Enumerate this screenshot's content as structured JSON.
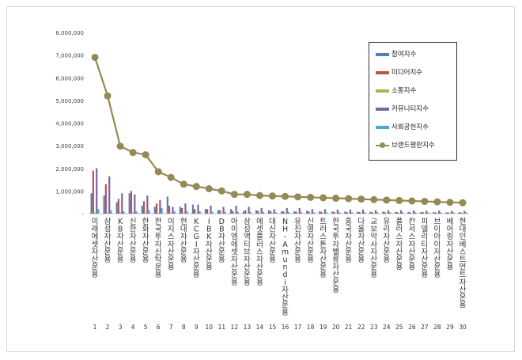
{
  "chart_data": {
    "type": "bar",
    "ylim": [
      0,
      8000000
    ],
    "yticks": [
      "8,000,000",
      "7,000,000",
      "6,000,000",
      "5,000,000",
      "4,000,000",
      "3,000,000",
      "2,000,000",
      "1,000,000",
      "-"
    ],
    "categories": [
      "미래에셋자산운용",
      "삼성자산운용",
      "KB자산운용",
      "신한자산운용",
      "한화자산운용",
      "한국투자신탁운용",
      "이지스자산운용",
      "현대자산운용",
      "KCGI자산운용",
      "IBK자산운용",
      "DB자산운용",
      "아이엠에셋자산운용",
      "삼성액티브자산운용",
      "에셋플러스자산운용",
      "대신자산운용",
      "NH-Amundi자산운용",
      "유진자산운용",
      "신영자산운용",
      "트러스톤자산운용",
      "한국투자밸류자산운용",
      "흥국자산운용",
      "다올자산운용",
      "교보악사자산운용",
      "유리자산운용",
      "플러스자산운용",
      "칸서스자산운용",
      "피델리티자산운용",
      "브이아이자산운용",
      "베어링자산운용",
      "현대인베스트먼트자산운용"
    ],
    "ranks": [
      "1",
      "2",
      "3",
      "4",
      "5",
      "6",
      "7",
      "8",
      "9",
      "10",
      "11",
      "12",
      "13",
      "14",
      "15",
      "16",
      "17",
      "18",
      "19",
      "20",
      "21",
      "22",
      "23",
      "24",
      "25",
      "26",
      "27",
      "28",
      "29",
      "30"
    ],
    "series": [
      {
        "name": "참여지수",
        "color": "#4f81bd",
        "values": [
          900000,
          800000,
          500000,
          900000,
          350000,
          300000,
          750000,
          300000,
          400000,
          200000,
          150000,
          200000,
          100000,
          150000,
          150000,
          100000,
          100000,
          120000,
          100000,
          90000,
          90000,
          80000,
          80000,
          90000,
          80000,
          80000,
          70000,
          70000,
          60000,
          60000
        ]
      },
      {
        "name": "미디어지수",
        "color": "#c0504d",
        "values": [
          1900000,
          1300000,
          650000,
          1000000,
          550000,
          450000,
          350000,
          250000,
          200000,
          200000,
          150000,
          120000,
          150000,
          120000,
          100000,
          100000,
          90000,
          100000,
          80000,
          80000,
          70000,
          70000,
          60000,
          60000,
          60000,
          50000,
          60000,
          50000,
          50000,
          50000
        ]
      },
      {
        "name": "소통지수",
        "color": "#9bbb59",
        "values": [
          50000,
          40000,
          60000,
          50000,
          40000,
          40000,
          30000,
          30000,
          20000,
          20000,
          20000,
          20000,
          20000,
          20000,
          20000,
          20000,
          20000,
          20000,
          20000,
          20000,
          20000,
          20000,
          20000,
          20000,
          20000,
          20000,
          20000,
          20000,
          20000,
          20000
        ]
      },
      {
        "name": "커뮤니티지수",
        "color": "#8064a2",
        "values": [
          2000000,
          1650000,
          900000,
          850000,
          800000,
          600000,
          300000,
          450000,
          400000,
          350000,
          300000,
          350000,
          300000,
          250000,
          200000,
          250000,
          250000,
          200000,
          200000,
          180000,
          180000,
          180000,
          150000,
          150000,
          150000,
          140000,
          130000,
          130000,
          120000,
          120000
        ]
      },
      {
        "name": "사회공헌지수",
        "color": "#4bacc6",
        "values": [
          200000,
          150000,
          100000,
          100000,
          150000,
          250000,
          100000,
          100000,
          100000,
          80000,
          80000,
          80000,
          80000,
          80000,
          60000,
          80000,
          60000,
          60000,
          60000,
          60000,
          60000,
          60000,
          60000,
          60000,
          60000,
          60000,
          60000,
          60000,
          60000,
          60000
        ]
      }
    ],
    "line": {
      "name": "브랜드평판지수",
      "color": "#948a54",
      "values": [
        6900000,
        5200000,
        2980000,
        2700000,
        2600000,
        1850000,
        1600000,
        1300000,
        1200000,
        1100000,
        1000000,
        850000,
        850000,
        800000,
        780000,
        760000,
        740000,
        720000,
        700000,
        680000,
        660000,
        640000,
        620000,
        600000,
        580000,
        560000,
        540000,
        520000,
        500000,
        480000
      ]
    },
    "legend_position": "top-right"
  }
}
